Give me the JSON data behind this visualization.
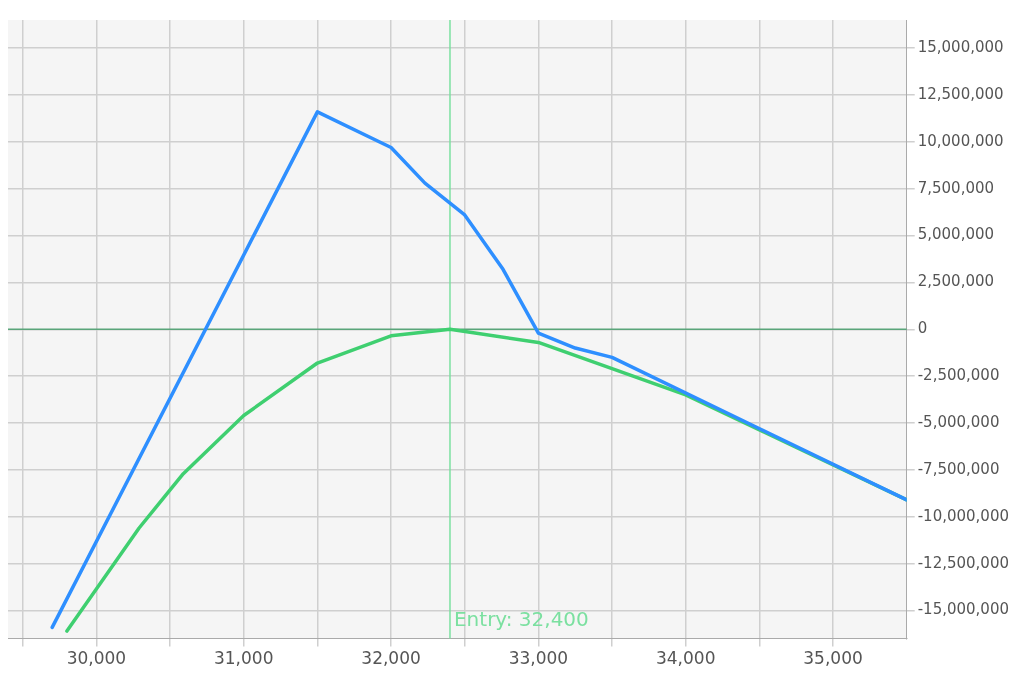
{
  "chart_data": {
    "type": "line",
    "x": [
      29700,
      31500,
      32000,
      32230,
      32500,
      32760,
      33000,
      33250,
      33500,
      35500
    ],
    "series": [
      {
        "color": "#2e8fff",
        "values": [
          -15900000,
          11600000,
          9700000,
          7800000,
          6100000,
          3200000,
          -200000,
          -1000000,
          -1500000,
          -9100000
        ]
      },
      {
        "color": "#3fcf70",
        "x": [
          29800,
          30290,
          30590,
          31000,
          31500,
          32000,
          32400,
          33000,
          33500,
          34000,
          35500
        ],
        "values": [
          -16100000,
          -10600000,
          -7700000,
          -4600000,
          -1800000,
          -350000,
          0,
          -700000,
          -2100000,
          -3500000,
          -9100000
        ]
      }
    ],
    "xlim": [
      29400,
      35500
    ],
    "xticks": [
      {
        "value": 29500,
        "label": null
      },
      {
        "value": 30000,
        "label": "30,000"
      },
      {
        "value": 30500,
        "label": null
      },
      {
        "value": 31000,
        "label": "31,000"
      },
      {
        "value": 31500,
        "label": null
      },
      {
        "value": 32000,
        "label": "32,000"
      },
      {
        "value": 32500,
        "label": null
      },
      {
        "value": 33000,
        "label": "33,000"
      },
      {
        "value": 33500,
        "label": null
      },
      {
        "value": 34000,
        "label": "34,000"
      },
      {
        "value": 34500,
        "label": null
      },
      {
        "value": 35000,
        "label": "35,000"
      }
    ],
    "ylim": [
      -16500000,
      16500000
    ],
    "yticks": [
      {
        "value": -15000000,
        "label": "-15,000,000"
      },
      {
        "value": -12500000,
        "label": "-12,500,000"
      },
      {
        "value": -10000000,
        "label": "-10,000,000"
      },
      {
        "value": -7500000,
        "label": "-7,500,000"
      },
      {
        "value": -5000000,
        "label": "-5,000,000"
      },
      {
        "value": -2500000,
        "label": "-2,500,000"
      },
      0,
      {
        "value": 2500000,
        "label": "2,500,000"
      },
      {
        "value": 5000000,
        "label": "5,000,000"
      },
      {
        "value": 7500000,
        "label": "7,500,000"
      },
      {
        "value": 10000000,
        "label": "10,000,000"
      },
      {
        "value": 12500000,
        "label": "12,500,000"
      },
      {
        "value": 15000000,
        "label": "15,000,000"
      }
    ],
    "ref_lines": [
      {
        "axis": "y",
        "value": 0,
        "color": "#5aa57a"
      },
      {
        "axis": "x",
        "value": 32400,
        "label": "Entry: 32,400",
        "color": "#7be0a0"
      }
    ],
    "grid": true,
    "legend": false,
    "marker": "none",
    "line_style": "solid"
  }
}
